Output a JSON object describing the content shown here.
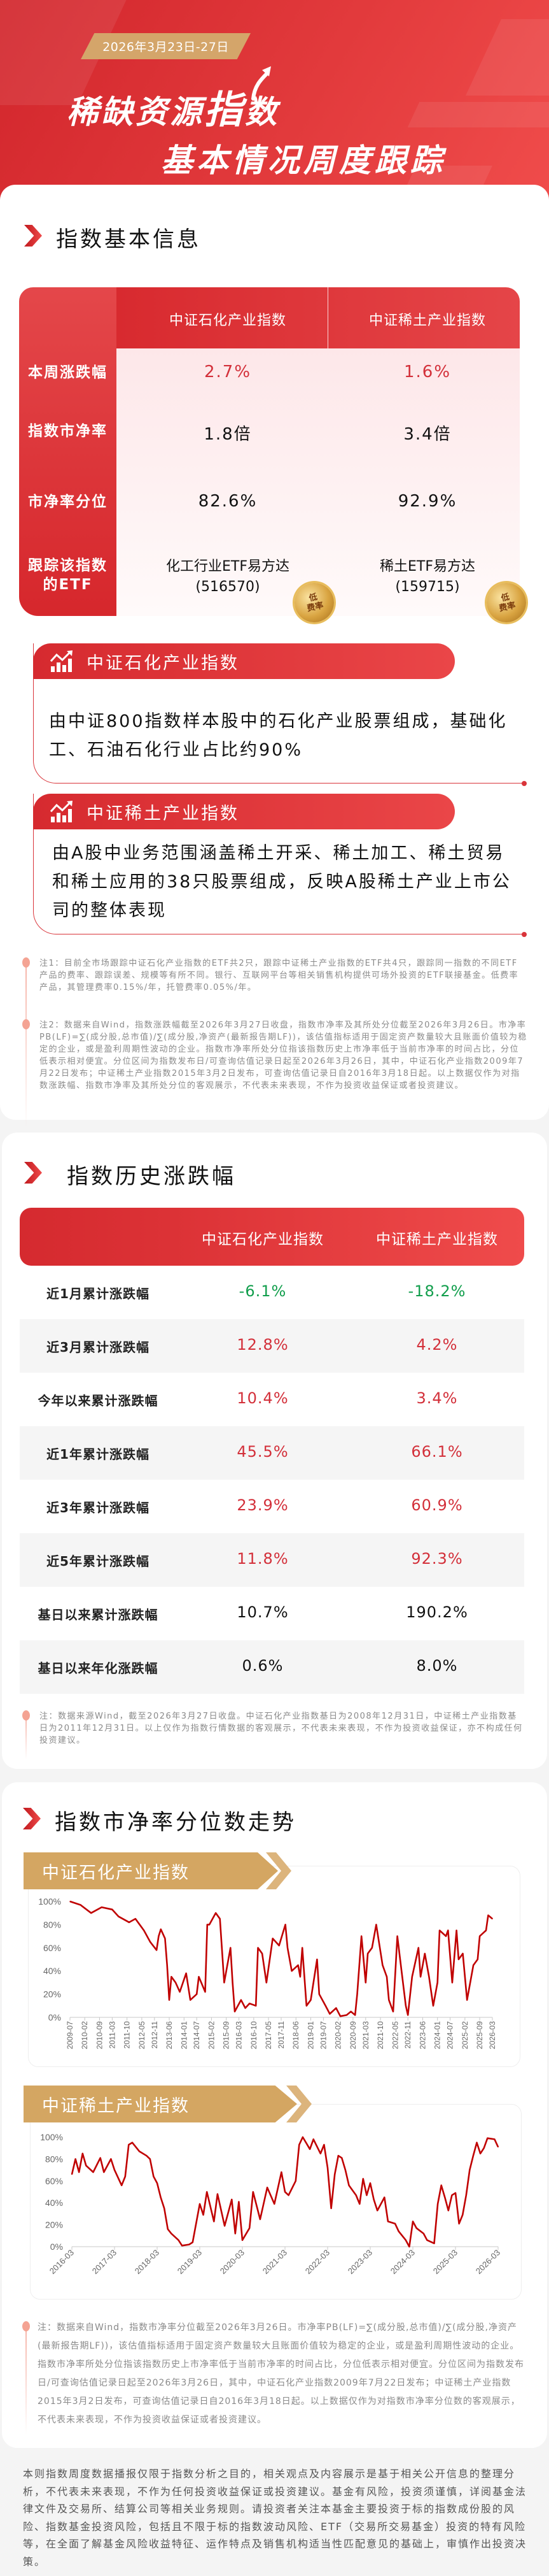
{
  "header": {
    "date_range": "2026年3月23日-27日",
    "title_line1_pre": "稀缺资源",
    "title_line1_emph": "指",
    "title_line1_post": "数",
    "title_line2": "基本情况周度跟踪"
  },
  "basic_info": {
    "section_title": "指数基本信息",
    "columns": [
      "中证石化产业指数",
      "中证稀土产业指数"
    ],
    "rows": [
      {
        "label": "本周涨跌幅",
        "values": [
          "2.7%",
          "1.6%"
        ],
        "tone": "red"
      },
      {
        "label": "指数市净率",
        "values": [
          "1.8倍",
          "3.4倍"
        ],
        "tone": "black"
      },
      {
        "label": "市净率分位",
        "values": [
          "82.6%",
          "92.9%"
        ],
        "tone": "black"
      }
    ],
    "etf_row": {
      "label": "跟踪该指数的ETF",
      "etfs": [
        {
          "name": "化工行业ETF易方达",
          "code": "(516570)",
          "badge_top": "低",
          "badge_bottom": "费率"
        },
        {
          "name": "稀土ETF易方达",
          "code": "(159715)",
          "badge_top": "低",
          "badge_bottom": "费率"
        }
      ]
    },
    "descriptions": [
      {
        "title": "中证石化产业指数",
        "text": "由中证800指数样本股中的石化产业股票组成，基础化工、石油石化行业占比约90%"
      },
      {
        "title": "中证稀土产业指数",
        "text": "由A股中业务范围涵盖稀土开采、稀土加工、稀土贸易和稀土应用的38只股票组成，反映A股稀土产业上市公司的整体表现"
      }
    ],
    "notes": [
      "注1：目前全市场跟踪中证石化产业指数的ETF共2只，跟踪中证稀土产业指数的ETF共4只，跟踪同一指数的不同ETF产品的费率、跟踪误差、规模等有所不同。银行、互联网平台等相关销售机构提供可场外投资的ETF联接基金。低费率产品，其管理费率0.15%/年，托管费率0.05%/年。",
      "注2：数据来自Wind，指数涨跌幅截至2026年3月27日收盘，指数市净率及其所处分位截至2026年3月26日。市净率PB(LF)=∑(成分股,总市值)/∑(成分股,净资产(最新报告期LF))，该估值指标适用于固定资产数量较大且账面价值较为稳定的企业，或是盈利周期性波动的企业。指数市净率所处分位指该指数历史上市净率低于当前市净率的时间占比，分位低表示相对便宜。分位区间为指数发布日/可查询估值记录日起至2026年3月26日，其中，中证石化产业指数2009年7月22日发布；中证稀土产业指数2015年3月2日发布，可查询估值记录日自2016年3月18日起。以上数据仅作为对指数涨跌幅、指数市净率及其所处分位的客观展示，不代表未来表现，不作为投资收益保证或者投资建议。"
    ]
  },
  "history": {
    "section_title": "指数历史涨跌幅",
    "columns": [
      "中证石化产业指数",
      "中证稀土产业指数"
    ],
    "rows": [
      {
        "label": "近1月累计涨跌幅",
        "values": [
          "-6.1%",
          "-18.2%"
        ],
        "colored": true
      },
      {
        "label": "近3月累计涨跌幅",
        "values": [
          "12.8%",
          "4.2%"
        ],
        "colored": true
      },
      {
        "label": "今年以来累计涨跌幅",
        "values": [
          "10.4%",
          "3.4%"
        ],
        "colored": true
      },
      {
        "label": "近1年累计涨跌幅",
        "values": [
          "45.5%",
          "66.1%"
        ],
        "colored": true
      },
      {
        "label": "近3年累计涨跌幅",
        "values": [
          "23.9%",
          "60.9%"
        ],
        "colored": true
      },
      {
        "label": "近5年累计涨跌幅",
        "values": [
          "11.8%",
          "92.3%"
        ],
        "colored": true
      },
      {
        "label": "基日以来累计涨跌幅",
        "values": [
          "10.7%",
          "190.2%"
        ],
        "colored": false
      },
      {
        "label": "基日以来年化涨跌幅",
        "values": [
          "0.6%",
          "8.0%"
        ],
        "colored": false
      }
    ],
    "note": "注：数据来源Wind，截至2026年3月27日收盘。中证石化产业指数基日为2008年12月31日，中证稀土产业指数基日为2011年12月31日。以上仅作为指数行情数据的客观展示，不代表未来表现，不作为投资收益保证，亦不构成任何投资建议。"
  },
  "pb_trend": {
    "section_title": "指数市净率分位数走势",
    "note": "注：数据来自Wind，指数市净率分位截至2026年3月26日。市净率PB(LF)=∑(成分股,总市值)/∑(成分股,净资产(最新报告期LF))，该估值指标适用于固定资产数量较大且账面价值较为稳定的企业，或是盈利周期性波动的企业。指数市净率所处分位指该指数历史上市净率低于当前市净率的时间占比，分位低表示相对便宜。分位区间为指数发布日/可查询估值记录日起至2026年3月26日，其中，中证石化产业指数2009年7月22日发布；中证稀土产业指数2015年3月2日发布，可查询估值记录日自2016年3月18日起。以上数据仅作为对指数市净率分位数的客观展示，不代表未来表现，不作为投资收益保证或者投资建议。"
  },
  "disclaimer": "本则指数周度数据播报仅限于指数分析之目的，相关观点及内容展示是基于相关公开信息的整理分析，不代表未来表现，不作为任何投资收益保证或投资建议。基金有风险，投资须谨慎，详阅基金法律文件及交易所、结算公司等相关业务规则。请投资者关注本基金主要投资于标的指数成份股的风险、指数基金投资风险，包括且不限于标的指数波动风险、ETF（交易所交易基金）投资的特有风险等，在全面了解基金风险收益特征、运作特点及销售机构适当性匹配意见的基础上，审慎作出投资决策。",
  "colors": {
    "brand_red": "#d9343a",
    "up": "#d3303a",
    "down": "#119e4c",
    "gold": "#d4a662",
    "line": "#c00000"
  },
  "chart_data": [
    {
      "type": "line",
      "title": "中证石化产业指数",
      "ylim": [
        0,
        100
      ],
      "y_ticks": [
        "0%",
        "20%",
        "40%",
        "60%",
        "80%",
        "100%"
      ],
      "xlim": [
        "2009-07",
        "2026-03"
      ],
      "x_ticks": [
        "2009-07",
        "2010-02",
        "2010-09",
        "2011-03",
        "2011-10",
        "2012-05",
        "2012-11",
        "2013-06",
        "2014-01",
        "2014-07",
        "2015-02",
        "2015-09",
        "2016-03",
        "2016-10",
        "2017-05",
        "2017-11",
        "2018-06",
        "2019-01",
        "2019-07",
        "2020-02",
        "2020-09",
        "2021-03",
        "2021-10",
        "2022-05",
        "2022-11",
        "2023-06",
        "2024-01",
        "2024-07",
        "2025-02",
        "2025-09",
        "2026-03"
      ],
      "grid": false,
      "series": [
        {
          "x": [
            "2009-07",
            "2009-12",
            "2010-05",
            "2010-10",
            "2011-03",
            "2011-06",
            "2011-11",
            "2012-02",
            "2012-06",
            "2012-09",
            "2012-12",
            "2013-01",
            "2013-02",
            "2013-04",
            "2013-05",
            "2013-06",
            "2013-07",
            "2013-09",
            "2013-11",
            "2014-02",
            "2014-04",
            "2014-07",
            "2014-08",
            "2014-11",
            "2014-12",
            "2015-01",
            "2015-04",
            "2015-06",
            "2015-08",
            "2015-09",
            "2015-11",
            "2015-12",
            "2016-01",
            "2016-04",
            "2016-06",
            "2016-08",
            "2016-11",
            "2016-12",
            "2017-02",
            "2017-04",
            "2017-07",
            "2017-10",
            "2018-01",
            "2018-02",
            "2018-04",
            "2018-07",
            "2018-08",
            "2018-09",
            "2018-11",
            "2019-01",
            "2019-04",
            "2019-05",
            "2019-08",
            "2019-10",
            "2020-01",
            "2020-03",
            "2020-06",
            "2020-08",
            "2020-10",
            "2020-11",
            "2021-01",
            "2021-03",
            "2021-04",
            "2021-06",
            "2021-08",
            "2021-11",
            "2022-01",
            "2022-02",
            "2022-04",
            "2022-06",
            "2022-08",
            "2022-10",
            "2022-11",
            "2023-01",
            "2023-04",
            "2023-05",
            "2023-07",
            "2023-09",
            "2023-11",
            "2024-01",
            "2024-02",
            "2024-05",
            "2024-06",
            "2024-08",
            "2024-10",
            "2024-11",
            "2025-01",
            "2025-03",
            "2025-04",
            "2025-06",
            "2025-08",
            "2025-09",
            "2025-12",
            "2026-01",
            "2026-03"
          ],
          "y": [
            100,
            97,
            90,
            95,
            93,
            87,
            82,
            85,
            75,
            65,
            58,
            70,
            76,
            68,
            45,
            15,
            35,
            30,
            22,
            38,
            15,
            20,
            35,
            22,
            80,
            80,
            90,
            85,
            30,
            40,
            60,
            30,
            5,
            15,
            8,
            12,
            10,
            60,
            55,
            30,
            68,
            62,
            80,
            60,
            40,
            45,
            35,
            60,
            10,
            15,
            50,
            20,
            10,
            3,
            8,
            1,
            2,
            5,
            2,
            20,
            70,
            30,
            55,
            60,
            80,
            45,
            35,
            15,
            5,
            70,
            40,
            10,
            2,
            35,
            60,
            35,
            55,
            35,
            10,
            30,
            75,
            70,
            75,
            30,
            75,
            50,
            55,
            15,
            25,
            45,
            50,
            70,
            75,
            88,
            85
          ]
        }
      ]
    },
    {
      "type": "line",
      "title": "中证稀土产业指数",
      "ylim": [
        0,
        100
      ],
      "y_ticks": [
        "0%",
        "20%",
        "40%",
        "60%",
        "80%",
        "100%"
      ],
      "xlim": [
        "2016-03",
        "2026-03"
      ],
      "x_ticks": [
        "2016-03",
        "2017-03",
        "2018-03",
        "2019-03",
        "2020-03",
        "2021-03",
        "2022-03",
        "2023-03",
        "2024-03",
        "2025-03",
        "2026-03"
      ],
      "grid": false,
      "series": [
        {
          "x": [
            "2016-03",
            "2016-04",
            "2016-05",
            "2016-06",
            "2016-07",
            "2016-09",
            "2016-11",
            "2016-12",
            "2017-02",
            "2017-03",
            "2017-05",
            "2017-06",
            "2017-07",
            "2017-08",
            "2017-10",
            "2017-12",
            "2018-01",
            "2018-02",
            "2018-03",
            "2018-04",
            "2018-05",
            "2018-06",
            "2018-07",
            "2018-09",
            "2018-10",
            "2018-12",
            "2019-01",
            "2019-03",
            "2019-04",
            "2019-05",
            "2019-07",
            "2019-08",
            "2019-10",
            "2019-12",
            "2020-01",
            "2020-02",
            "2020-03",
            "2020-05",
            "2020-06",
            "2020-08",
            "2020-10",
            "2020-12",
            "2021-02",
            "2021-03",
            "2021-04",
            "2021-06",
            "2021-07",
            "2021-08",
            "2021-10",
            "2021-11",
            "2022-01",
            "2022-02",
            "2022-03",
            "2022-04",
            "2022-05",
            "2022-06",
            "2022-07",
            "2022-08",
            "2022-09",
            "2022-11",
            "2022-12",
            "2023-01",
            "2023-02",
            "2023-03",
            "2023-04",
            "2023-05",
            "2023-07",
            "2023-08",
            "2023-10",
            "2023-11",
            "2024-01",
            "2024-02",
            "2024-03",
            "2024-04",
            "2024-06",
            "2024-07",
            "2024-09",
            "2024-10",
            "2024-11",
            "2024-12",
            "2025-01",
            "2025-02",
            "2025-03",
            "2025-04",
            "2025-05",
            "2025-06",
            "2025-07",
            "2025-08",
            "2025-09",
            "2025-10",
            "2025-11",
            "2025-12",
            "2026-02",
            "2026-03"
          ],
          "y": [
            66,
            80,
            68,
            85,
            74,
            68,
            81,
            68,
            80,
            70,
            56,
            64,
            93,
            95,
            87,
            83,
            80,
            64,
            58,
            45,
            35,
            16,
            12,
            6,
            1,
            2,
            4,
            39,
            29,
            50,
            23,
            48,
            19,
            43,
            12,
            41,
            6,
            17,
            50,
            25,
            54,
            39,
            68,
            50,
            47,
            60,
            93,
            100,
            89,
            98,
            85,
            93,
            72,
            35,
            66,
            83,
            81,
            70,
            56,
            47,
            39,
            62,
            47,
            58,
            43,
            33,
            45,
            23,
            21,
            14,
            6,
            0,
            23,
            17,
            12,
            6,
            3,
            39,
            56,
            45,
            33,
            47,
            49,
            21,
            29,
            47,
            70,
            83,
            95,
            85,
            90,
            99,
            98,
            91
          ]
        }
      ]
    }
  ]
}
